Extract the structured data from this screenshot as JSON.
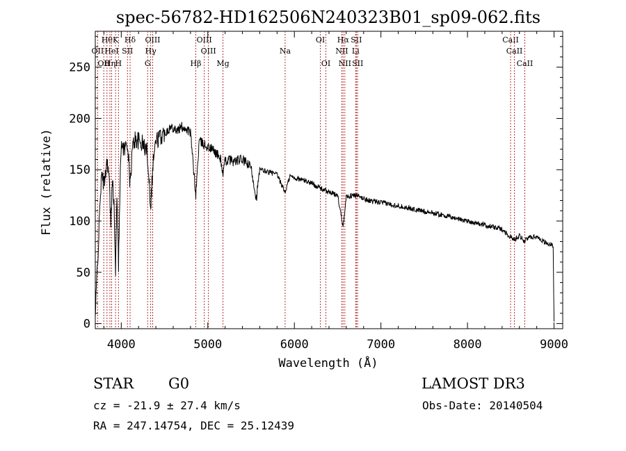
{
  "chart_data": {
    "type": "line",
    "title": "spec-56782-HD162506N240323B01_sp09-062.fits",
    "xlabel": "Wavelength (Å)",
    "ylabel": "Flux (relative)",
    "xlim": [
      3700,
      9100
    ],
    "ylim": [
      -5,
      285
    ],
    "x_ticks": [
      4000,
      5000,
      6000,
      7000,
      8000,
      9000
    ],
    "y_ticks": [
      0,
      50,
      100,
      150,
      200,
      250
    ],
    "grid": false,
    "series": [
      {
        "name": "spectrum",
        "x": [
          3700,
          3720,
          3740,
          3760,
          3780,
          3800,
          3820,
          3840,
          3860,
          3880,
          3900,
          3920,
          3934,
          3950,
          3968,
          3990,
          4010,
          4040,
          4070,
          4102,
          4130,
          4160,
          4200,
          4250,
          4300,
          4340,
          4370,
          4400,
          4450,
          4500,
          4550,
          4600,
          4650,
          4700,
          4750,
          4800,
          4861,
          4900,
          4950,
          5000,
          5050,
          5100,
          5150,
          5175,
          5200,
          5250,
          5300,
          5400,
          5500,
          5560,
          5600,
          5700,
          5800,
          5893,
          5950,
          6000,
          6100,
          6200,
          6300,
          6400,
          6500,
          6563,
          6600,
          6700,
          6800,
          6900,
          7000,
          7200,
          7400,
          7600,
          7800,
          8000,
          8200,
          8400,
          8498,
          8542,
          8600,
          8662,
          8700,
          8800,
          8900,
          8960,
          8990,
          9000
        ],
        "y": [
          5,
          50,
          85,
          130,
          145,
          135,
          150,
          160,
          140,
          95,
          148,
          105,
          45,
          130,
          55,
          160,
          175,
          170,
          178,
          135,
          172,
          180,
          178,
          175,
          168,
          115,
          160,
          178,
          182,
          186,
          190,
          192,
          188,
          192,
          190,
          186,
          125,
          178,
          175,
          172,
          170,
          166,
          160,
          145,
          158,
          160,
          158,
          160,
          152,
          122,
          150,
          148,
          145,
          128,
          144,
          142,
          140,
          137,
          132,
          128,
          125,
          95,
          124,
          125,
          122,
          119,
          118,
          115,
          111,
          108,
          104,
          100,
          96,
          92,
          84,
          82,
          86,
          80,
          84,
          85,
          79,
          77,
          75,
          2
        ]
      }
    ],
    "lines": [
      {
        "wave": 3727,
        "top": "",
        "mid": "OII",
        "low": ""
      },
      {
        "wave": 3798,
        "top": "",
        "mid": "",
        "low": "OII"
      },
      {
        "wave": 3835,
        "top": "Hθ",
        "mid": "",
        "low": ""
      },
      {
        "wave": 3869,
        "top": "",
        "mid": "",
        "low": "Hη"
      },
      {
        "wave": 3889,
        "top": "",
        "mid": "HeI",
        "low": ""
      },
      {
        "wave": 3934,
        "top": "K",
        "mid": "",
        "low": ""
      },
      {
        "wave": 3968,
        "top": "",
        "mid": "",
        "low": "H"
      },
      {
        "wave": 4072,
        "top": "",
        "mid": "SII",
        "low": ""
      },
      {
        "wave": 4102,
        "top": "Hδ",
        "mid": "",
        "low": ""
      },
      {
        "wave": 4305,
        "top": "",
        "mid": "",
        "low": "G"
      },
      {
        "wave": 4340,
        "top": "",
        "mid": "Hγ",
        "low": ""
      },
      {
        "wave": 4363,
        "top": "OIII",
        "mid": "",
        "low": ""
      },
      {
        "wave": 4861,
        "top": "",
        "mid": "",
        "low": "Hβ"
      },
      {
        "wave": 4959,
        "top": "OIII",
        "mid": "",
        "low": ""
      },
      {
        "wave": 5007,
        "top": "",
        "mid": "OIII",
        "low": ""
      },
      {
        "wave": 5175,
        "top": "",
        "mid": "",
        "low": "Mg"
      },
      {
        "wave": 5893,
        "top": "",
        "mid": "Na",
        "low": ""
      },
      {
        "wave": 6300,
        "top": "OI",
        "mid": "",
        "low": ""
      },
      {
        "wave": 6364,
        "top": "",
        "mid": "",
        "low": "OI"
      },
      {
        "wave": 6548,
        "top": "",
        "mid": "NII",
        "low": ""
      },
      {
        "wave": 6563,
        "top": "Hα",
        "mid": "",
        "low": ""
      },
      {
        "wave": 6583,
        "top": "",
        "mid": "",
        "low": "NII"
      },
      {
        "wave": 6708,
        "top": "",
        "mid": "Li",
        "low": ""
      },
      {
        "wave": 6716,
        "top": "SII",
        "mid": "",
        "low": ""
      },
      {
        "wave": 6731,
        "top": "",
        "mid": "",
        "low": "SII"
      },
      {
        "wave": 8498,
        "top": "CaII",
        "mid": "",
        "low": ""
      },
      {
        "wave": 8542,
        "top": "",
        "mid": "CaII",
        "low": ""
      },
      {
        "wave": 8662,
        "top": "",
        "mid": "",
        "low": "CaII"
      }
    ]
  },
  "info": {
    "object_class": "STAR",
    "subclass": "G0",
    "survey": "LAMOST DR3",
    "redshift": "cz = -21.9 ± 27.4 km/s",
    "obs_date": "Obs-Date: 20140504",
    "coords": "RA = 247.14754, DEC =  25.12439"
  },
  "colors": {
    "line_marker": "#b03030",
    "spectrum": "#000000",
    "axis": "#000000"
  }
}
